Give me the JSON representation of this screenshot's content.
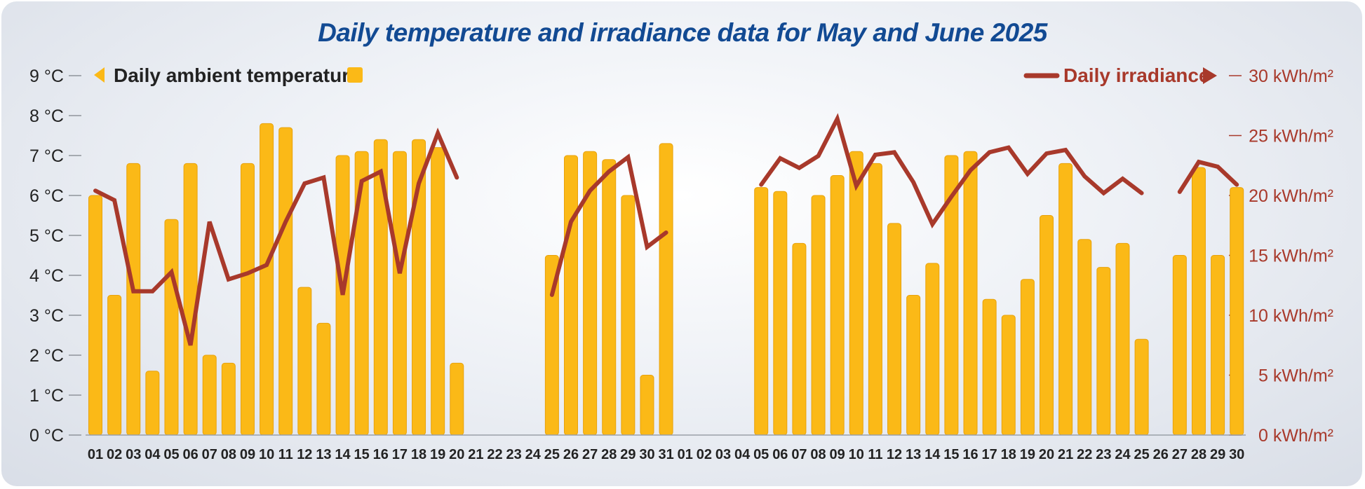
{
  "chart_data": {
    "type": "bar+line",
    "title": "Daily temperature and irradiance data for May and June 2025",
    "legend": {
      "temperature": "Daily ambient temperature",
      "irradiance": "Daily irradiance"
    },
    "y_left": {
      "ticks": [
        "0 °C",
        "1 °C",
        "2 °C",
        "3 °C",
        "4 °C",
        "5 °C",
        "6 °C",
        "7 °C",
        "8 °C",
        "9 °C"
      ],
      "ylim": [
        0,
        9
      ]
    },
    "y_right": {
      "ticks": [
        "0 kWh/m²",
        "5 kWh/m²",
        "10 kWh/m²",
        "15 kWh/m²",
        "20 kWh/m²",
        "25 kWh/m²",
        "30 kWh/m²"
      ],
      "ylim": [
        0,
        30
      ]
    },
    "categories": [
      "01",
      "02",
      "03",
      "04",
      "05",
      "06",
      "07",
      "08",
      "09",
      "10",
      "11",
      "12",
      "13",
      "14",
      "15",
      "16",
      "17",
      "18",
      "19",
      "20",
      "21",
      "22",
      "23",
      "24",
      "25",
      "26",
      "27",
      "28",
      "29",
      "30",
      "31",
      "01",
      "02",
      "03",
      "04",
      "05",
      "06",
      "07",
      "08",
      "09",
      "10",
      "11",
      "12",
      "13",
      "14",
      "15",
      "16",
      "17",
      "18",
      "19",
      "20",
      "21",
      "22",
      "23",
      "24",
      "25",
      "26",
      "27",
      "28",
      "29",
      "30"
    ],
    "series": [
      {
        "name": "Daily ambient temperature",
        "type": "bar",
        "color": "#fbb917",
        "values": [
          6.0,
          3.5,
          6.8,
          1.6,
          5.4,
          6.8,
          2.0,
          1.8,
          6.8,
          7.8,
          7.7,
          3.7,
          2.8,
          7.0,
          7.1,
          7.4,
          7.1,
          7.4,
          7.2,
          1.8,
          null,
          null,
          null,
          null,
          4.5,
          7.0,
          7.1,
          6.9,
          6.0,
          1.5,
          7.3,
          null,
          null,
          null,
          null,
          6.2,
          6.1,
          4.8,
          6.0,
          6.5,
          7.1,
          6.8,
          5.3,
          3.5,
          4.3,
          7.0,
          7.1,
          3.4,
          3.0,
          3.9,
          5.5,
          6.8,
          4.9,
          4.2,
          4.8,
          2.4,
          null,
          4.5,
          6.7,
          4.5,
          6.2
        ]
      },
      {
        "name": "Daily irradiance",
        "type": "line",
        "color": "#a8392b",
        "values": [
          20.4,
          19.6,
          12.0,
          12.0,
          13.6,
          7.5,
          17.8,
          13.0,
          13.5,
          14.2,
          17.8,
          21.0,
          21.5,
          11.7,
          21.2,
          22.0,
          13.5,
          21.0,
          25.2,
          21.5,
          null,
          null,
          null,
          null,
          11.7,
          17.8,
          20.4,
          22.0,
          23.2,
          15.7,
          16.9,
          null,
          null,
          null,
          null,
          20.9,
          23.1,
          22.3,
          23.3,
          26.4,
          20.8,
          23.4,
          23.6,
          21.1,
          17.6,
          19.9,
          22.1,
          23.6,
          24.0,
          21.8,
          23.5,
          23.8,
          21.6,
          20.2,
          21.4,
          20.2,
          null,
          20.3,
          22.8,
          22.4,
          20.9
        ]
      }
    ]
  }
}
